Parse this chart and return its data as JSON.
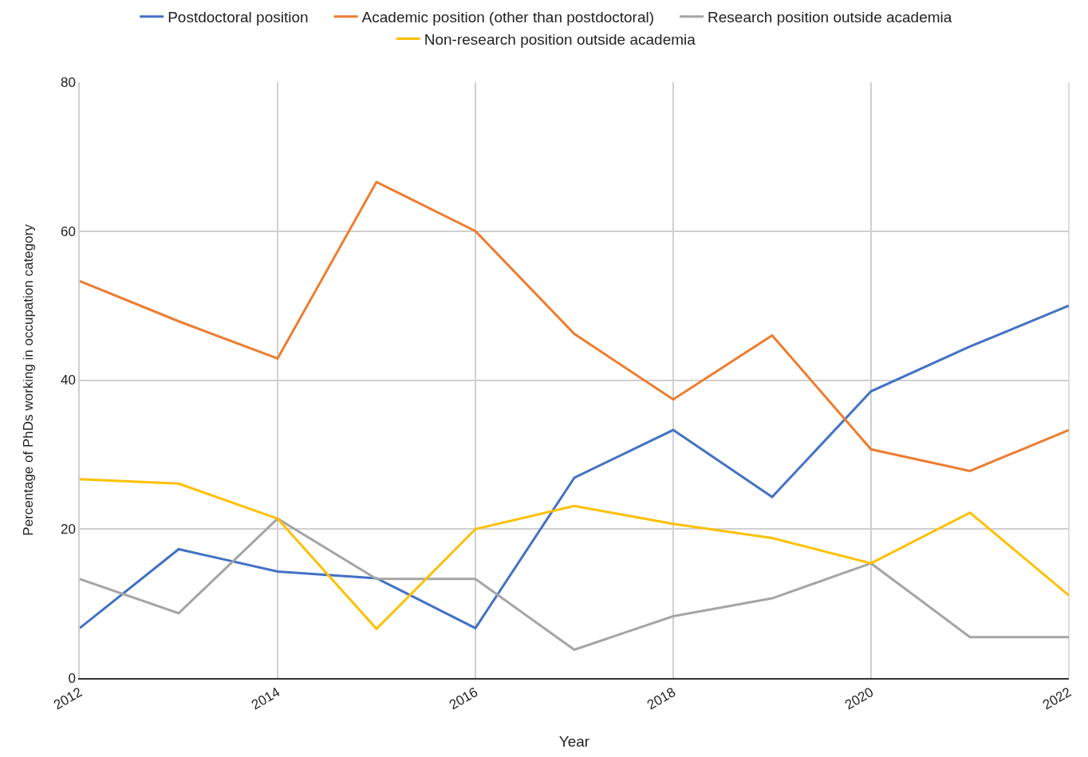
{
  "chart_data": {
    "type": "line",
    "xlabel": "Year",
    "ylabel": "Percentage of PhDs working in occupation category",
    "x": [
      2012,
      2013,
      2014,
      2015,
      2016,
      2017,
      2018,
      2019,
      2020,
      2021,
      2022
    ],
    "series": [
      {
        "name": "Postdoctoral position",
        "color": "#4472c4",
        "values": [
          6.7,
          17.3,
          14.3,
          13.4,
          6.7,
          26.9,
          33.3,
          24.3,
          38.5,
          44.5,
          50
        ]
      },
      {
        "name": "Academic position (other than postdoctoral)",
        "color": "#ed7d31",
        "values": [
          53.3,
          47.9,
          42.9,
          66.6,
          60,
          46.2,
          37.4,
          46,
          30.7,
          27.8,
          33.3
        ]
      },
      {
        "name": "Research position outside academia",
        "color": "#a5a5a5",
        "values": [
          13.3,
          8.7,
          21.4,
          13.3,
          13.3,
          3.8,
          8.3,
          10.7,
          15.4,
          5.5,
          5.5
        ]
      },
      {
        "name": "Non-research position outside academia",
        "color": "#ffc000",
        "values": [
          26.7,
          26.1,
          21.4,
          6.6,
          20,
          23.1,
          20.7,
          18.8,
          15.4,
          22.2,
          11.1
        ]
      }
    ],
    "xlim": [
      2012,
      2022
    ],
    "xticks": [
      2012,
      2014,
      2016,
      2018,
      2020,
      2022
    ],
    "ylim": [
      0,
      80
    ],
    "yticks": [
      0,
      20,
      40,
      60,
      80
    ],
    "grid": true,
    "legend": "top",
    "marker": "none",
    "line_style": "solid"
  }
}
